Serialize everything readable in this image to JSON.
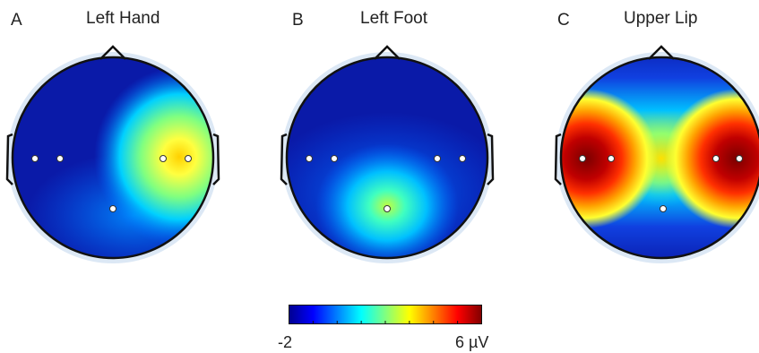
{
  "panels": [
    {
      "letter": "A",
      "title": "Left Hand"
    },
    {
      "letter": "B",
      "title": "Left Foot"
    },
    {
      "letter": "C",
      "title": "Upper Lip"
    }
  ],
  "colorbar": {
    "min_label": "-2",
    "max_label": "6 µV",
    "min_value": -2,
    "max_value": 6
  },
  "colors": {
    "jet_stops": [
      "#00008f",
      "#0000ff",
      "#0080ff",
      "#00ffff",
      "#80ff80",
      "#ffff00",
      "#ff8000",
      "#ff0000",
      "#800000"
    ],
    "outline": "#111111",
    "halo": "#dce8f5"
  }
}
